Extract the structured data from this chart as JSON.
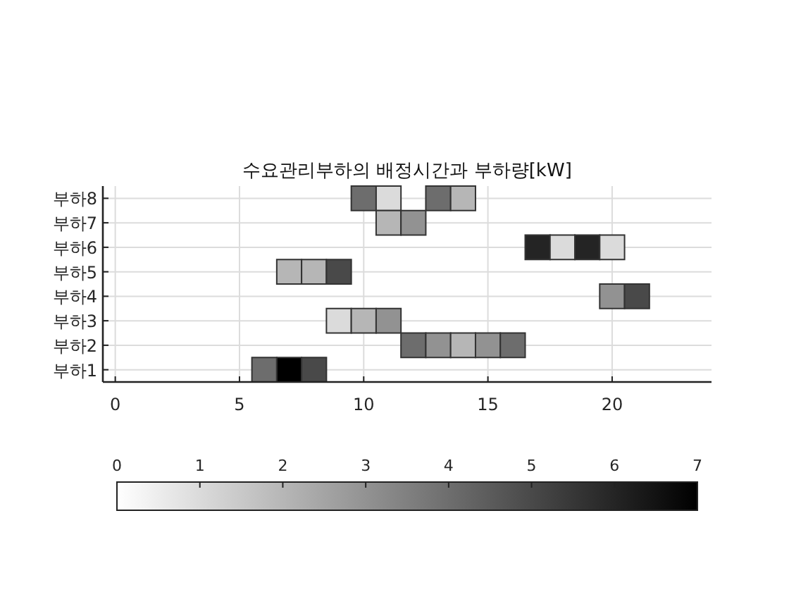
{
  "chart_data": {
    "type": "heatmap",
    "title": "수요관리부하의 배정시간과 부하량[kW]",
    "x": [
      6,
      7,
      8,
      9,
      10,
      11,
      12,
      13,
      14,
      15,
      16,
      17,
      18,
      19,
      20,
      21
    ],
    "xlim": [
      -0.5,
      24
    ],
    "xticks": [
      0,
      5,
      10,
      15,
      20
    ],
    "y_categories": [
      "부하8",
      "부하7",
      "부하6",
      "부하5",
      "부하4",
      "부하3",
      "부하2",
      "부하1"
    ],
    "cells": [
      [
        null,
        null,
        null,
        null,
        4,
        1,
        null,
        4,
        2,
        null,
        null,
        null,
        null,
        null,
        null,
        null
      ],
      [
        null,
        null,
        null,
        null,
        null,
        2,
        3,
        null,
        null,
        null,
        null,
        null,
        null,
        null,
        null,
        null
      ],
      [
        null,
        null,
        null,
        null,
        null,
        null,
        null,
        null,
        null,
        null,
        null,
        6,
        1,
        6,
        1,
        null
      ],
      [
        null,
        2,
        2,
        5,
        null,
        null,
        null,
        null,
        null,
        null,
        null,
        null,
        null,
        null,
        null,
        null
      ],
      [
        null,
        null,
        null,
        null,
        null,
        null,
        null,
        null,
        null,
        null,
        null,
        null,
        null,
        null,
        3,
        5
      ],
      [
        null,
        null,
        null,
        1,
        2,
        3,
        null,
        null,
        null,
        null,
        null,
        null,
        null,
        null,
        null,
        null
      ],
      [
        null,
        null,
        null,
        null,
        null,
        null,
        4,
        3,
        2,
        3,
        4,
        null,
        null,
        null,
        null,
        null
      ],
      [
        4,
        7,
        5,
        null,
        null,
        null,
        null,
        null,
        null,
        null,
        null,
        null,
        null,
        null,
        null,
        null
      ]
    ],
    "clim": [
      0,
      7
    ],
    "cticks": [
      0,
      1,
      2,
      3,
      4,
      5,
      6,
      7
    ],
    "grid": true
  }
}
